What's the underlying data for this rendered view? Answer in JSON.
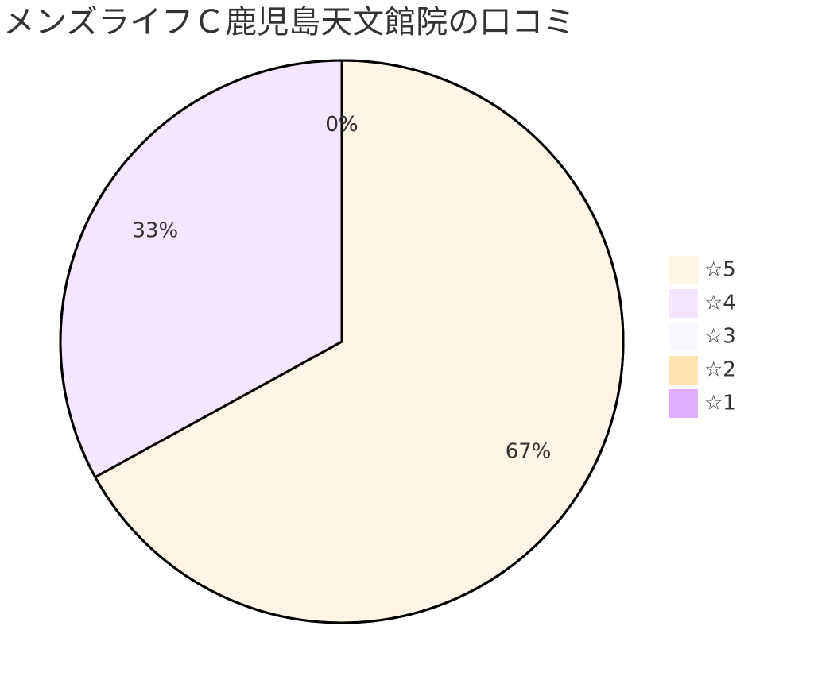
{
  "chart_data": {
    "type": "pie",
    "title": "メンズライフＣ鹿児島天文館院の口コミ",
    "categories": [
      "☆5",
      "☆4",
      "☆3",
      "☆2",
      "☆1"
    ],
    "values": [
      67,
      33,
      0,
      0,
      0
    ],
    "value_labels": [
      "67%",
      "33%",
      "0%",
      "0%",
      "0%"
    ],
    "colors": [
      "#fff5e6",
      "#f5e6ff",
      "#f8f8ff",
      "#ffe4b0",
      "#e0b0ff"
    ]
  }
}
